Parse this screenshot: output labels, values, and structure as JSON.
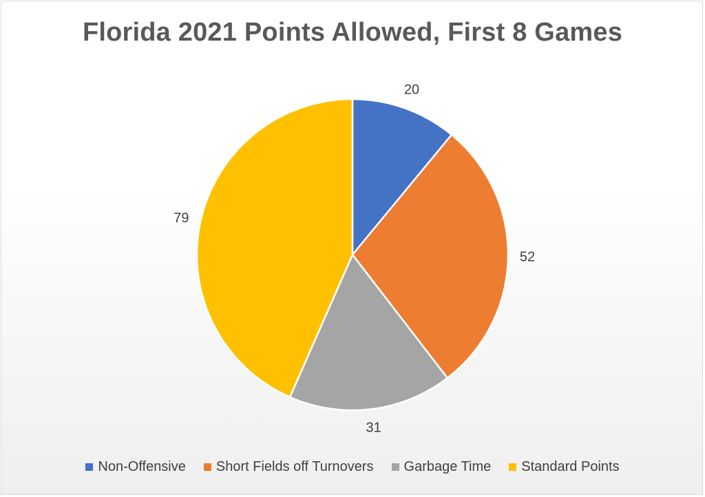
{
  "chart_data": {
    "type": "pie",
    "title": "Florida 2021 Points Allowed, First 8 Games",
    "categories": [
      "Non-Offensive",
      "Short Fields off Turnovers",
      "Garbage Time",
      "Standard Points"
    ],
    "values": [
      20,
      52,
      31,
      79
    ],
    "data_labels": [
      "20",
      "52",
      "31",
      "79"
    ],
    "colors": [
      "#4472C4",
      "#ED7D31",
      "#A5A5A5",
      "#FFC000"
    ],
    "legend_position": "bottom",
    "start_angle": "12 o'clock",
    "direction": "clockwise"
  }
}
